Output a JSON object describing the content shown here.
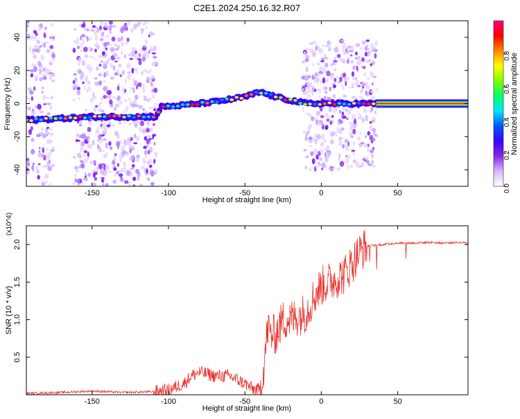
{
  "figure_title": "C2E1.2024.250.16.32.R07",
  "chart_data": [
    {
      "type": "heatmap",
      "title": "C2E1.2024.250.16.32.R07",
      "xlabel": "Height of straight line (km)",
      "ylabel": "Frequency (Hz)",
      "xlim": [
        -193,
        96
      ],
      "ylim": [
        -50,
        50
      ],
      "x_ticks": [
        -150,
        -100,
        -50,
        0,
        50
      ],
      "y_ticks": [
        -40,
        -20,
        0,
        20,
        40
      ],
      "colorbar": {
        "label": "Normalized spectral amplitude",
        "range": [
          0,
          1
        ],
        "ticks": [
          0.0,
          0.2,
          0.4,
          0.6,
          0.8
        ],
        "colors": [
          "#ffffff",
          "#d9b8ff",
          "#8a2be2",
          "#3a00ff",
          "#0055ff",
          "#00e5ff",
          "#00ff66",
          "#7fff00",
          "#ffff00",
          "#ff8800",
          "#ff0000",
          "#ff0080"
        ]
      },
      "ridge": [
        {
          "x": -193,
          "y": -10
        },
        {
          "x": -170,
          "y": -9
        },
        {
          "x": -150,
          "y": -8
        },
        {
          "x": -130,
          "y": -8
        },
        {
          "x": -108,
          "y": -8
        },
        {
          "x": -105,
          "y": -2
        },
        {
          "x": -90,
          "y": -1
        },
        {
          "x": -70,
          "y": 1
        },
        {
          "x": -50,
          "y": 4
        },
        {
          "x": -40,
          "y": 7
        },
        {
          "x": -30,
          "y": 4
        },
        {
          "x": -20,
          "y": 2
        },
        {
          "x": -10,
          "y": 0
        },
        {
          "x": 0,
          "y": 0
        },
        {
          "x": 20,
          "y": 0
        },
        {
          "x": 35,
          "y": 0
        },
        {
          "x": 96,
          "y": 0
        }
      ],
      "noise_regions": [
        {
          "x": [
            -193,
            -175
          ],
          "y": [
            -50,
            50
          ]
        },
        {
          "x": [
            -162,
            -140
          ],
          "y": [
            -50,
            50
          ]
        },
        {
          "x": [
            -145,
            -108
          ],
          "y": [
            -50,
            50
          ]
        },
        {
          "x": [
            -12,
            36
          ],
          "y": [
            -40,
            38
          ]
        }
      ],
      "tone_band": {
        "x": [
          36,
          96
        ],
        "y": 0
      }
    },
    {
      "type": "line",
      "xlabel": "Height of straight line (km)",
      "ylabel": "SNR (10 * v/v)",
      "y_scale_label": "(x10^4)",
      "xlim": [
        -193,
        96
      ],
      "ylim": [
        0,
        2.25
      ],
      "x_ticks": [
        -150,
        -100,
        -50,
        0,
        50
      ],
      "y_ticks": [
        0.5,
        1.0,
        1.5,
        2.0
      ],
      "series": [
        {
          "color": "#e8302a",
          "x": [
            -193,
            -170,
            -150,
            -130,
            -110,
            -100,
            -90,
            -85,
            -80,
            -75,
            -70,
            -60,
            -50,
            -45,
            -40,
            -38,
            -35,
            -33,
            -30,
            -25,
            -20,
            -15,
            -10,
            -5,
            0,
            5,
            10,
            15,
            20,
            25,
            30,
            40,
            50,
            60,
            70,
            80,
            90,
            96
          ],
          "y": [
            0.02,
            0.03,
            0.05,
            0.03,
            0.04,
            0.06,
            0.15,
            0.25,
            0.3,
            0.28,
            0.25,
            0.25,
            0.15,
            0.08,
            0.06,
            0.3,
            0.9,
            0.8,
            0.8,
            1.0,
            1.0,
            1.05,
            1.1,
            1.3,
            1.45,
            1.5,
            1.55,
            1.6,
            1.75,
            1.9,
            1.98,
            2.0,
            2.02,
            2.02,
            2.03,
            2.02,
            2.03,
            2.02
          ]
        }
      ]
    }
  ]
}
